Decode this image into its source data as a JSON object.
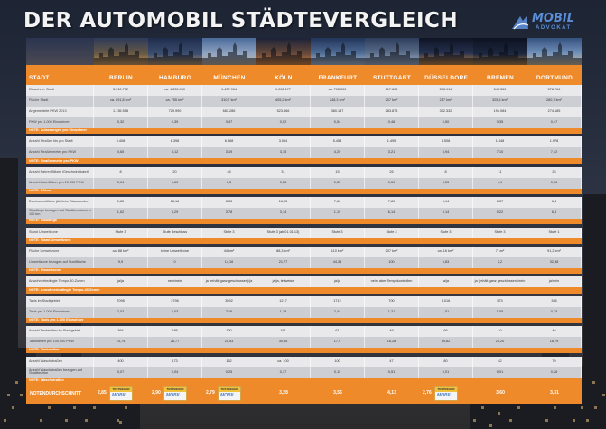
{
  "title": "DER AUTOMOBIL STÄDTEVERGLEICH",
  "logo": {
    "main": "MOBIL",
    "sub": "ADVOKAT",
    "brand_color": "#5b8ed6"
  },
  "colors": {
    "accent": "#ee8a2a",
    "row_light": "#e9e9ec",
    "row_dark": "#cdced3"
  },
  "header": {
    "first": "STADT",
    "cities": [
      "BERLIN",
      "HAMBURG",
      "MÜNCHEN",
      "KÖLN",
      "FRANKFURT",
      "STUTTGART",
      "DÜSSELDORF",
      "BREMEN",
      "DORTMUND"
    ]
  },
  "rows": [
    {
      "type": "data",
      "shade": "light",
      "label": "Einwohner Stadt",
      "values": [
        "3.510.772",
        "ca. 1.830.000",
        "1.437.964",
        "1.006.177",
        "ca. 708.000",
        "617.600",
        "598.914",
        "547.360",
        "578.764"
      ]
    },
    {
      "type": "data",
      "shade": "dark",
      "label": "Fläche Stadt",
      "values": [
        "ca. 891,8 km²",
        "ca. 755 km²",
        "310,7 km²",
        "405,2 km²",
        "248,3 km²",
        "207 km²",
        "217 km²",
        "325,6 km²",
        "280,7 km²"
      ]
    },
    {
      "type": "data",
      "shade": "light",
      "label": "Angemeldete PKW 2013",
      "values": [
        "1.135.558",
        "729.990",
        "681.286",
        "523.566",
        "380.147",
        "283.876",
        "302.332",
        "194.084",
        "274.185"
      ]
    },
    {
      "type": "data",
      "shade": "dark",
      "label": "PKW pro 1.000 Einwohner",
      "values": [
        "0,32",
        "0,39",
        "0,47",
        "0,52",
        "0,54",
        "0,46",
        "0,50",
        "0,35",
        "0,47"
      ]
    },
    {
      "type": "sect",
      "label": "NOTE: Zulassungen pro Einwohner"
    },
    {
      "type": "gap"
    },
    {
      "type": "data",
      "shade": "light",
      "label": "Anzahl Straßen bis pro Stadt",
      "values": [
        "9.408",
        "8.398",
        "6.368",
        "3.054",
        "5.453",
        "1.495",
        "1.508",
        "1.848",
        "1.978"
      ]
    },
    {
      "type": "data",
      "shade": "dark",
      "label": "Anzahl Straßenmeter pro PKW",
      "values": [
        "4,65",
        "3,12",
        "3,19",
        "3,15",
        "4,20",
        "3,21",
        "3,94",
        "7,10",
        "7,42"
      ]
    },
    {
      "type": "sect",
      "label": "NOTE: Straßenmeter pro PKW"
    },
    {
      "type": "gap"
    },
    {
      "type": "data",
      "shade": "light",
      "label": "Anzahl Fahrer-Blitzer (Geschwindigkeit)",
      "values": [
        "8",
        "20",
        "46",
        "31",
        "15",
        "26",
        "8",
        "11",
        "25"
      ]
    },
    {
      "type": "data",
      "shade": "dark",
      "label": "Anzahl Auto-Blitzer pro 10.000 PKW",
      "values": [
        "0,04",
        "0,60",
        "1,3",
        "0,58",
        "0,35",
        "0,59",
        "0,53",
        "4,1",
        "0,36"
      ]
    },
    {
      "type": "sect",
      "label": "NOTE: Blitzer"
    },
    {
      "type": "gap"
    },
    {
      "type": "data",
      "shade": "light",
      "label": "Durchschnittliche jährliche Staustunden",
      "values": [
        "0,85",
        "18,16",
        "8,55",
        "16,05",
        "7,66",
        "7,80",
        "6,14",
        "6,37",
        "6,4"
      ]
    },
    {
      "type": "data",
      "shade": "dark",
      "label": "Staulänge bezogen auf Stadtbewohner x 100 km",
      "values": [
        "1,62",
        "3,29",
        "3,78",
        "3,14",
        "1,19",
        "6,14",
        "0,14",
        "0,22",
        "6,4"
      ]
    },
    {
      "type": "sect",
      "label": "NOTE: Staulänge"
    },
    {
      "type": "gap"
    },
    {
      "type": "data",
      "shade": "light",
      "label": "Stand Umweltzone",
      "values": [
        "Stufe 3",
        "Stufe Beschluss",
        "Stufe 3",
        "Stufe 3 (ab 01.01.13)",
        "Stufe 3",
        "Stufe 3",
        "Stufe 3",
        "Stufe 3",
        "Stufe 1"
      ]
    },
    {
      "type": "sect",
      "label": "NOTE: Stand Umweltzone"
    },
    {
      "type": "gap"
    },
    {
      "type": "data",
      "shade": "light",
      "label": "Fläche Umweltzone",
      "values": [
        "ca. 88 km²",
        "keine Umweltzone",
        "44 km²",
        "88,3 km²",
        "110 km²",
        "207 km²",
        "ca. 16 km²",
        "7 km²",
        "91,2 km²"
      ]
    },
    {
      "type": "data",
      "shade": "dark",
      "label": "Umweltzone bezogen auf Stadtfläche",
      "values": [
        "9,9",
        "0",
        "14,16",
        "21,77",
        "44,36",
        "100",
        "6,83",
        "2,2",
        "32,38"
      ]
    },
    {
      "type": "sect",
      "label": "NOTE: Umweltzone"
    },
    {
      "type": "gap"
    },
    {
      "type": "data",
      "shade": "light",
      "label": "Anwohnerbedingte Tempo-30-Zonen",
      "values": [
        "ja/ja",
        "nein/nein",
        "ja (erhält ganz geschlossen)/ja",
        "ja/ja, teilweise",
        "ja/ja",
        "nein, aber Tempokontrollen",
        "ja/ja",
        "ja (erhält ganz geschlossen)/nein",
        "ja/nein"
      ]
    },
    {
      "type": "sect",
      "label": "NOTE: Anwohnerbedingte Tempo-30-Zonen"
    },
    {
      "type": "gap"
    },
    {
      "type": "data",
      "shade": "light",
      "label": "Taxis im Stadtgebiet",
      "values": [
        "7098",
        "3796",
        "3592",
        "1217",
        "1712",
        "700",
        "1.016",
        "573",
        "346"
      ]
    },
    {
      "type": "data",
      "shade": "dark",
      "label": "Taxis pro 1.000 Einwohner",
      "values": [
        "2,02",
        "2,03",
        "2,16",
        "1,18",
        "2,44",
        "1,21",
        "1,51",
        "1,05",
        "0,75"
      ]
    },
    {
      "type": "sect",
      "label": "NOTE: Taxis pro 1.000 Einwohner"
    },
    {
      "type": "gap"
    },
    {
      "type": "data",
      "shade": "light",
      "label": "Anzahl Tankstellen im Stadtgebiet",
      "values": [
        "364",
        "188",
        "120",
        "161",
        "61",
        "49",
        "66",
        "40",
        "46"
      ]
    },
    {
      "type": "data",
      "shade": "dark",
      "label": "Tankstellen pro 100.000 PKW",
      "values": [
        "23,74",
        "28,77",
        "20,53",
        "30,95",
        "17,9",
        "16,28",
        "19,82",
        "20,20",
        "16,79"
      ]
    },
    {
      "type": "sect",
      "label": "NOTE: Tankstellen"
    },
    {
      "type": "gap"
    },
    {
      "type": "data",
      "shade": "light",
      "label": "Anzahl Waschstraßen",
      "values": [
        "400",
        "173",
        "162",
        "ca. 100",
        "100",
        "47",
        "80",
        "82",
        "70"
      ]
    },
    {
      "type": "data",
      "shade": "dark",
      "label": "Anzahl Waschstraßen bezogen auf Stadtbezirke",
      "values": [
        "0,07",
        "0,04",
        "0,25",
        "0,37",
        "0,11",
        "0,51",
        "0,01",
        "0,01",
        "0,26"
      ]
    },
    {
      "type": "sect",
      "label": "NOTE: Waschstraßen"
    }
  ],
  "summary": {
    "label": "NOTENDURCHSCHNITT",
    "scores": [
      "2,85",
      "2,90",
      "2,79",
      "3,28",
      "3,56",
      "4,13",
      "2,76",
      "3,60",
      "3,31"
    ],
    "badges": [
      true,
      true,
      true,
      false,
      false,
      false,
      true,
      false,
      false
    ],
    "badge_top": "TESTSIEGER",
    "badge_brand": "MOBIL"
  }
}
